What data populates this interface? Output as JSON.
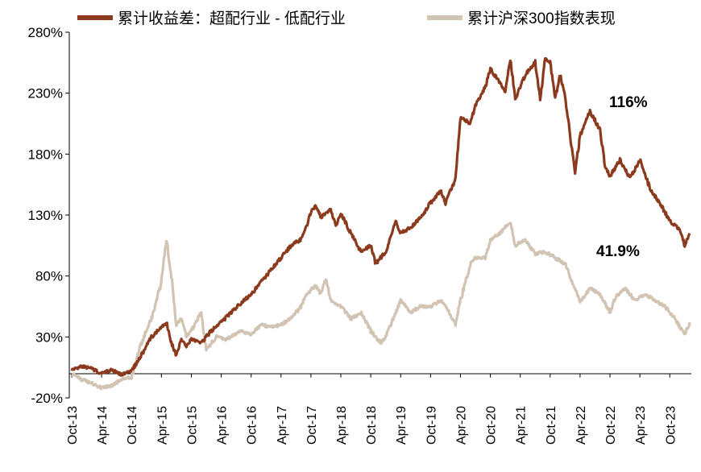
{
  "chart_data": {
    "type": "line",
    "legend": {
      "placement": "top"
    },
    "y_axis": {
      "min": -20,
      "max": 280,
      "step": 50,
      "unit": "%",
      "ticks": [
        "-20%",
        "30%",
        "80%",
        "130%",
        "180%",
        "230%",
        "280%"
      ]
    },
    "x_axis": {
      "start": "Oct-13",
      "end": "Feb-24",
      "ticks": [
        "Oct-13",
        "Apr-14",
        "Oct-14",
        "Apr-15",
        "Oct-15",
        "Apr-16",
        "Oct-16",
        "Apr-17",
        "Oct-17",
        "Apr-18",
        "Oct-18",
        "Apr-19",
        "Oct-19",
        "Apr-20",
        "Oct-20",
        "Apr-21",
        "Oct-21",
        "Apr-22",
        "Oct-22",
        "Apr-23",
        "Oct-23"
      ]
    },
    "grid": false,
    "series": [
      {
        "name": "累计收益差：超配行业 - 低配行业",
        "color": "#8B3A1E",
        "x": [
          "2013-10",
          "2013-12",
          "2014-02",
          "2014-04",
          "2014-06",
          "2014-08",
          "2014-10",
          "2014-12",
          "2015-02",
          "2015-04",
          "2015-05",
          "2015-06",
          "2015-07",
          "2015-08",
          "2015-09",
          "2015-10",
          "2015-12",
          "2016-02",
          "2016-04",
          "2016-06",
          "2016-08",
          "2016-10",
          "2016-12",
          "2017-02",
          "2017-04",
          "2017-06",
          "2017-08",
          "2017-09",
          "2017-10",
          "2017-11",
          "2017-12",
          "2018-02",
          "2018-03",
          "2018-04",
          "2018-06",
          "2018-08",
          "2018-10",
          "2018-11",
          "2019-01",
          "2019-02",
          "2019-03",
          "2019-04",
          "2019-06",
          "2019-08",
          "2019-10",
          "2019-12",
          "2020-01",
          "2020-03",
          "2020-04",
          "2020-06",
          "2020-07",
          "2020-09",
          "2020-10",
          "2020-12",
          "2021-01",
          "2021-02",
          "2021-03",
          "2021-05",
          "2021-07",
          "2021-08",
          "2021-09",
          "2021-10",
          "2021-11",
          "2021-12",
          "2022-01",
          "2022-02",
          "2022-03",
          "2022-04",
          "2022-06",
          "2022-08",
          "2022-09",
          "2022-10",
          "2022-12",
          "2023-02",
          "2023-04",
          "2023-06",
          "2023-08",
          "2023-10",
          "2023-12",
          "2024-01",
          "2024-02"
        ],
        "values": [
          3,
          6,
          4,
          0,
          3,
          -1,
          2,
          15,
          30,
          38,
          42,
          25,
          15,
          28,
          22,
          28,
          25,
          35,
          42,
          50,
          58,
          65,
          75,
          85,
          95,
          105,
          110,
          120,
          132,
          138,
          128,
          135,
          120,
          132,
          115,
          100,
          105,
          90,
          100,
          112,
          125,
          115,
          120,
          128,
          140,
          150,
          140,
          160,
          210,
          205,
          220,
          235,
          250,
          238,
          230,
          258,
          225,
          245,
          255,
          225,
          258,
          255,
          225,
          245,
          228,
          195,
          165,
          195,
          215,
          200,
          170,
          162,
          175,
          160,
          175,
          152,
          140,
          125,
          118,
          105,
          115
        ],
        "end_label": "116%"
      },
      {
        "name": "累计沪深300指数表现",
        "color": "#D2C4B3",
        "x": [
          "2013-10",
          "2013-12",
          "2014-02",
          "2014-04",
          "2014-06",
          "2014-08",
          "2014-10",
          "2014-12",
          "2015-02",
          "2015-04",
          "2015-05",
          "2015-06",
          "2015-07",
          "2015-08",
          "2015-09",
          "2015-10",
          "2015-12",
          "2016-01",
          "2016-03",
          "2016-05",
          "2016-08",
          "2016-10",
          "2016-12",
          "2017-02",
          "2017-04",
          "2017-06",
          "2017-08",
          "2017-09",
          "2017-11",
          "2017-12",
          "2018-01",
          "2018-02",
          "2018-04",
          "2018-06",
          "2018-08",
          "2018-10",
          "2018-12",
          "2019-01",
          "2019-02",
          "2019-04",
          "2019-06",
          "2019-08",
          "2019-10",
          "2019-12",
          "2020-01",
          "2020-03",
          "2020-04",
          "2020-06",
          "2020-07",
          "2020-09",
          "2020-10",
          "2020-12",
          "2021-02",
          "2021-03",
          "2021-05",
          "2021-07",
          "2021-09",
          "2021-11",
          "2022-01",
          "2022-03",
          "2022-04",
          "2022-06",
          "2022-08",
          "2022-10",
          "2022-11",
          "2023-01",
          "2023-03",
          "2023-05",
          "2023-07",
          "2023-09",
          "2023-11",
          "2024-01",
          "2024-02"
        ],
        "values": [
          0,
          -5,
          -8,
          -12,
          -10,
          -5,
          -3,
          25,
          45,
          75,
          110,
          80,
          40,
          45,
          30,
          35,
          50,
          20,
          30,
          28,
          35,
          32,
          40,
          38,
          40,
          45,
          55,
          65,
          72,
          65,
          78,
          60,
          55,
          45,
          50,
          35,
          25,
          30,
          40,
          60,
          50,
          55,
          55,
          60,
          55,
          40,
          60,
          90,
          95,
          95,
          110,
          115,
          125,
          105,
          110,
          98,
          100,
          95,
          90,
          70,
          58,
          70,
          65,
          50,
          62,
          70,
          60,
          65,
          60,
          55,
          45,
          32,
          42
        ],
        "end_label": "41.9%"
      }
    ]
  }
}
